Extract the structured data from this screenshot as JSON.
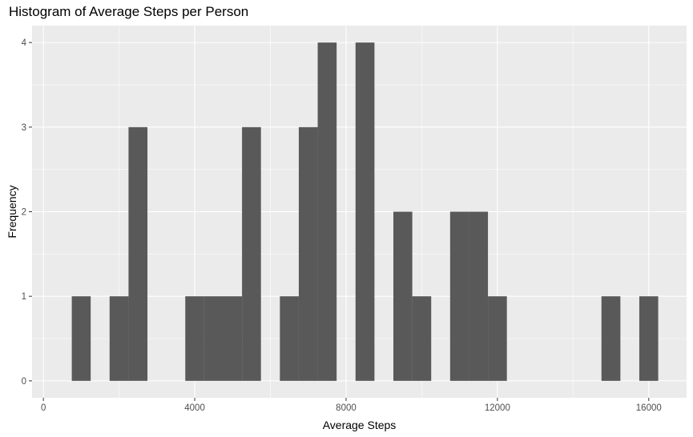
{
  "chart_data": {
    "type": "bar",
    "title": "Histogram of Average Steps per Person",
    "xlabel": "Average Steps",
    "ylabel": "Frequency",
    "xlim": [
      -300,
      17000
    ],
    "ylim": [
      -0.2,
      4.2
    ],
    "x_ticks": [
      0,
      4000,
      8000,
      12000,
      16000
    ],
    "y_ticks": [
      0,
      1,
      2,
      3,
      4
    ],
    "grid": true,
    "bar_color": "#595959",
    "panel_color": "#EBEBEB",
    "grid_color": "#FFFFFF",
    "bins": [
      {
        "x0": 750,
        "x1": 1250,
        "count": 1
      },
      {
        "x0": 1750,
        "x1": 2250,
        "count": 1
      },
      {
        "x0": 2250,
        "x1": 2750,
        "count": 3
      },
      {
        "x0": 3750,
        "x1": 4250,
        "count": 1
      },
      {
        "x0": 4250,
        "x1": 4750,
        "count": 1
      },
      {
        "x0": 4750,
        "x1": 5250,
        "count": 1
      },
      {
        "x0": 5250,
        "x1": 5750,
        "count": 3
      },
      {
        "x0": 6250,
        "x1": 6750,
        "count": 1
      },
      {
        "x0": 6750,
        "x1": 7250,
        "count": 3
      },
      {
        "x0": 7250,
        "x1": 7750,
        "count": 4
      },
      {
        "x0": 8250,
        "x1": 8750,
        "count": 4
      },
      {
        "x0": 9250,
        "x1": 9750,
        "count": 2
      },
      {
        "x0": 9750,
        "x1": 10250,
        "count": 1
      },
      {
        "x0": 10750,
        "x1": 11250,
        "count": 2
      },
      {
        "x0": 11250,
        "x1": 11750,
        "count": 2
      },
      {
        "x0": 11750,
        "x1": 12250,
        "count": 1
      },
      {
        "x0": 14750,
        "x1": 15250,
        "count": 1
      },
      {
        "x0": 15750,
        "x1": 16250,
        "count": 1
      }
    ]
  }
}
